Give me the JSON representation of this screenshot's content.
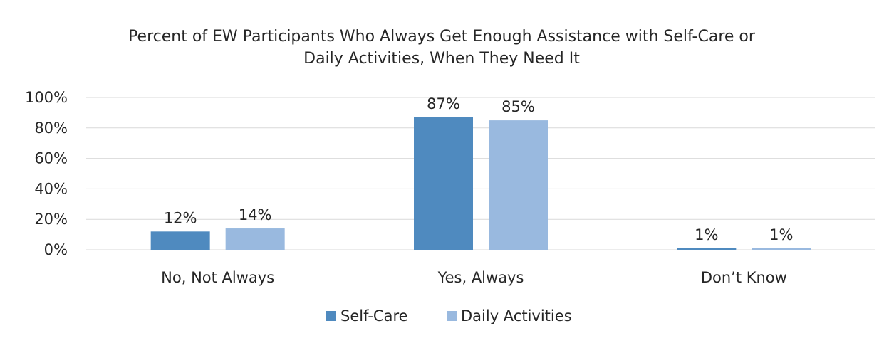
{
  "chart_data": {
    "type": "bar",
    "title_lines": [
      "Percent of EW Participants Who Always Get Enough Assistance with Self-Care or",
      "Daily Activities, When They Need It"
    ],
    "categories": [
      "No, Not Always",
      "Yes, Always",
      "Don’t Know"
    ],
    "series": [
      {
        "name": "Self-Care",
        "color": "#4f8abf",
        "values": [
          12,
          87,
          1
        ],
        "labels": [
          "12%",
          "87%",
          "1%"
        ]
      },
      {
        "name": "Daily Activities",
        "color": "#99b9df",
        "values": [
          14,
          85,
          1
        ],
        "labels": [
          "14%",
          "85%",
          "1%"
        ]
      }
    ],
    "ylim": [
      0,
      100
    ],
    "yticks": [
      0,
      20,
      40,
      60,
      80,
      100
    ],
    "ytick_labels": [
      "0%",
      "20%",
      "40%",
      "60%",
      "80%",
      "100%"
    ],
    "grid": true,
    "legend_position": "bottom"
  }
}
